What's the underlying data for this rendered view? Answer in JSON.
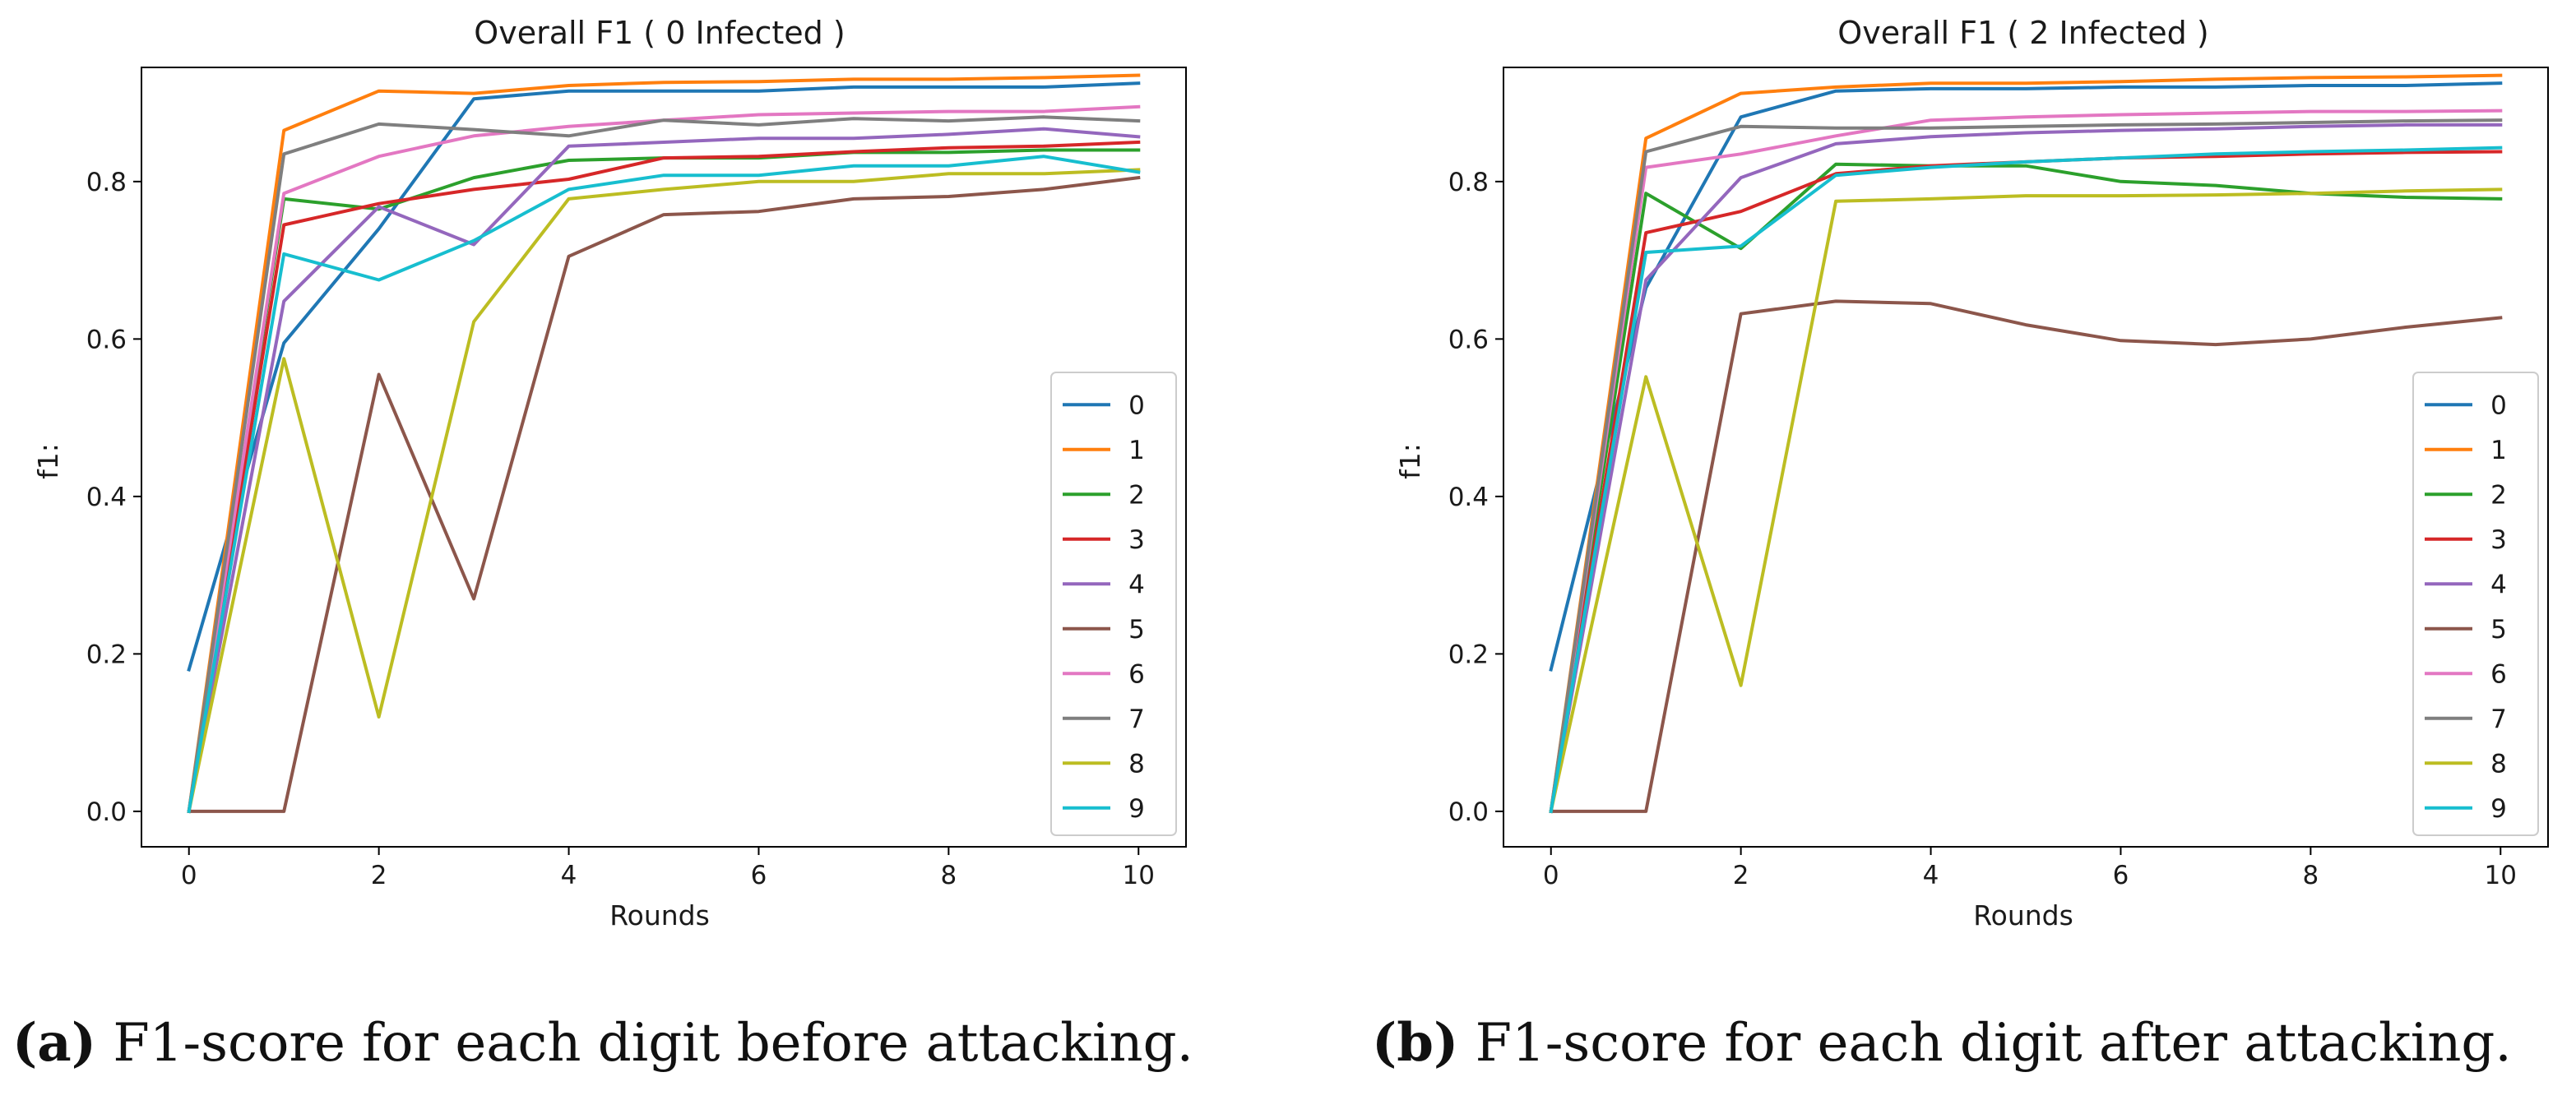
{
  "chart_data": [
    {
      "type": "line",
      "title": "Overall F1 ( 0 Infected )",
      "xlabel": "Rounds",
      "ylabel": "f1:",
      "xlim": [
        -0.5,
        10.5
      ],
      "ylim": [
        -0.045,
        0.945
      ],
      "xticks": [
        0,
        2,
        4,
        6,
        8,
        10
      ],
      "xtick_labels": [
        "0",
        "2",
        "4",
        "6",
        "8",
        "10"
      ],
      "yticks": [
        0.0,
        0.2,
        0.4,
        0.6,
        0.8
      ],
      "ytick_labels": [
        "0.0",
        "0.2",
        "0.4",
        "0.6",
        "0.8"
      ],
      "legend_location": "lower-right",
      "x": [
        0,
        1,
        2,
        3,
        4,
        5,
        6,
        7,
        8,
        9,
        10
      ],
      "series": [
        {
          "name": "0",
          "color": "#1f77b4",
          "values": [
            0.18,
            0.595,
            0.74,
            0.905,
            0.915,
            0.915,
            0.915,
            0.92,
            0.92,
            0.92,
            0.925
          ]
        },
        {
          "name": "1",
          "color": "#ff7f0e",
          "values": [
            0.0,
            0.865,
            0.915,
            0.912,
            0.922,
            0.926,
            0.927,
            0.93,
            0.93,
            0.932,
            0.935
          ]
        },
        {
          "name": "2",
          "color": "#2ca02c",
          "values": [
            0.0,
            0.778,
            0.765,
            0.805,
            0.827,
            0.83,
            0.83,
            0.837,
            0.837,
            0.84,
            0.84
          ]
        },
        {
          "name": "3",
          "color": "#d62728",
          "values": [
            0.0,
            0.745,
            0.772,
            0.79,
            0.803,
            0.83,
            0.832,
            0.838,
            0.843,
            0.845,
            0.85
          ]
        },
        {
          "name": "4",
          "color": "#9467bd",
          "values": [
            0.0,
            0.648,
            0.768,
            0.72,
            0.845,
            0.85,
            0.855,
            0.855,
            0.86,
            0.867,
            0.857
          ]
        },
        {
          "name": "5",
          "color": "#8c564b",
          "values": [
            0.0,
            0.0,
            0.555,
            0.27,
            0.705,
            0.758,
            0.762,
            0.778,
            0.781,
            0.79,
            0.805
          ]
        },
        {
          "name": "6",
          "color": "#e377c2",
          "values": [
            0.0,
            0.785,
            0.832,
            0.858,
            0.87,
            0.878,
            0.885,
            0.887,
            0.889,
            0.889,
            0.895
          ]
        },
        {
          "name": "7",
          "color": "#7f7f7f",
          "values": [
            0.0,
            0.835,
            0.873,
            0.866,
            0.858,
            0.878,
            0.872,
            0.88,
            0.877,
            0.882,
            0.877
          ]
        },
        {
          "name": "8",
          "color": "#bcbd22",
          "values": [
            0.0,
            0.575,
            0.12,
            0.622,
            0.778,
            0.79,
            0.8,
            0.8,
            0.81,
            0.81,
            0.815
          ]
        },
        {
          "name": "9",
          "color": "#17becf",
          "values": [
            0.0,
            0.708,
            0.675,
            0.725,
            0.79,
            0.808,
            0.808,
            0.82,
            0.82,
            0.832,
            0.812
          ]
        }
      ]
    },
    {
      "type": "line",
      "title": "Overall F1 ( 2 Infected )",
      "xlabel": "Rounds",
      "ylabel": "f1:",
      "xlim": [
        -0.5,
        10.5
      ],
      "ylim": [
        -0.045,
        0.945
      ],
      "xticks": [
        0,
        2,
        4,
        6,
        8,
        10
      ],
      "xtick_labels": [
        "0",
        "2",
        "4",
        "6",
        "8",
        "10"
      ],
      "yticks": [
        0.0,
        0.2,
        0.4,
        0.6,
        0.8
      ],
      "ytick_labels": [
        "0.0",
        "0.2",
        "0.4",
        "0.6",
        "0.8"
      ],
      "legend_location": "lower-right",
      "x": [
        0,
        1,
        2,
        3,
        4,
        5,
        6,
        7,
        8,
        9,
        10
      ],
      "series": [
        {
          "name": "0",
          "color": "#1f77b4",
          "values": [
            0.18,
            0.665,
            0.882,
            0.915,
            0.918,
            0.918,
            0.92,
            0.92,
            0.922,
            0.922,
            0.925
          ]
        },
        {
          "name": "1",
          "color": "#ff7f0e",
          "values": [
            0.0,
            0.855,
            0.912,
            0.92,
            0.925,
            0.925,
            0.927,
            0.93,
            0.932,
            0.933,
            0.935
          ]
        },
        {
          "name": "2",
          "color": "#2ca02c",
          "values": [
            0.0,
            0.785,
            0.715,
            0.822,
            0.82,
            0.82,
            0.8,
            0.795,
            0.785,
            0.78,
            0.778
          ]
        },
        {
          "name": "3",
          "color": "#d62728",
          "values": [
            0.0,
            0.735,
            0.762,
            0.81,
            0.82,
            0.825,
            0.83,
            0.832,
            0.835,
            0.837,
            0.838
          ]
        },
        {
          "name": "4",
          "color": "#9467bd",
          "values": [
            0.0,
            0.675,
            0.805,
            0.848,
            0.857,
            0.862,
            0.865,
            0.867,
            0.87,
            0.872,
            0.872
          ]
        },
        {
          "name": "5",
          "color": "#8c564b",
          "values": [
            0.0,
            0.0,
            0.632,
            0.648,
            0.645,
            0.618,
            0.598,
            0.593,
            0.6,
            0.615,
            0.627
          ]
        },
        {
          "name": "6",
          "color": "#e377c2",
          "values": [
            0.0,
            0.818,
            0.835,
            0.858,
            0.878,
            0.882,
            0.885,
            0.887,
            0.889,
            0.889,
            0.89
          ]
        },
        {
          "name": "7",
          "color": "#7f7f7f",
          "values": [
            0.0,
            0.838,
            0.87,
            0.868,
            0.868,
            0.87,
            0.872,
            0.873,
            0.875,
            0.877,
            0.878
          ]
        },
        {
          "name": "8",
          "color": "#bcbd22",
          "values": [
            0.0,
            0.552,
            0.16,
            0.775,
            0.778,
            0.782,
            0.782,
            0.783,
            0.785,
            0.788,
            0.79
          ]
        },
        {
          "name": "9",
          "color": "#17becf",
          "values": [
            0.0,
            0.71,
            0.718,
            0.808,
            0.818,
            0.825,
            0.83,
            0.835,
            0.838,
            0.84,
            0.843
          ]
        }
      ]
    }
  ],
  "captions": [
    {
      "letter": "(a)",
      "text": " F1-score for each digit before attacking."
    },
    {
      "letter": "(b)",
      "text": " F1-score for each digit after attacking."
    }
  ]
}
